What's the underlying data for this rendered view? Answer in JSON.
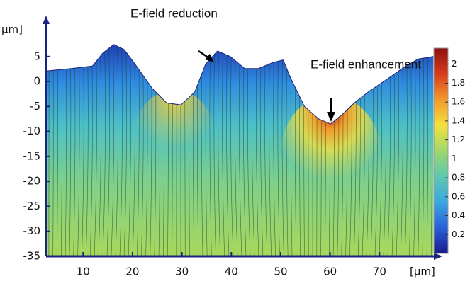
{
  "chart_data": {
    "type": "field",
    "x_label": "[μm]",
    "y_label": "μm]",
    "xlim": [
      2.5,
      81
    ],
    "ylim": [
      -35,
      11
    ],
    "xticks": [
      10,
      20,
      30,
      40,
      50,
      60,
      70
    ],
    "yticks": [
      5,
      0,
      -5,
      -10,
      -15,
      -20,
      -25,
      -30,
      -35
    ],
    "surface": {
      "x": [
        2.5,
        7.6,
        11.9,
        14,
        16.2,
        18.3,
        20.5,
        24,
        26.9,
        29.8,
        32.6,
        34.8,
        37.2,
        39.8,
        42.7,
        45.5,
        48.4,
        50.5,
        52,
        54.8,
        57.7,
        60.1,
        62.7,
        64.9,
        67.7,
        71.3,
        74.9,
        77.8,
        80.9
      ],
      "y": [
        2.1,
        2.6,
        3.1,
        5.7,
        7.4,
        6.4,
        3.5,
        -1.4,
        -4.3,
        -4.7,
        -2.1,
        3.5,
        6.1,
        5,
        2.6,
        2.6,
        3.8,
        4.3,
        0.7,
        -5,
        -7.5,
        -8.5,
        -6.4,
        -4.3,
        -2.1,
        0.3,
        2.8,
        4.5,
        5
      ]
    },
    "colormap": [
      "#1a1a8c",
      "#2a5fd8",
      "#3aa8e0",
      "#5cc8b0",
      "#9fd86a",
      "#f4e03c",
      "#f29a2a",
      "#d83a1a",
      "#8c1010"
    ],
    "clim": [
      0,
      2.17
    ],
    "cticks": [
      0.2,
      0.4,
      0.6,
      0.8,
      1,
      1.2,
      1.4,
      1.6,
      1.8,
      2
    ],
    "annotations": [
      "E-field reduction",
      "E-field enhancement"
    ]
  }
}
